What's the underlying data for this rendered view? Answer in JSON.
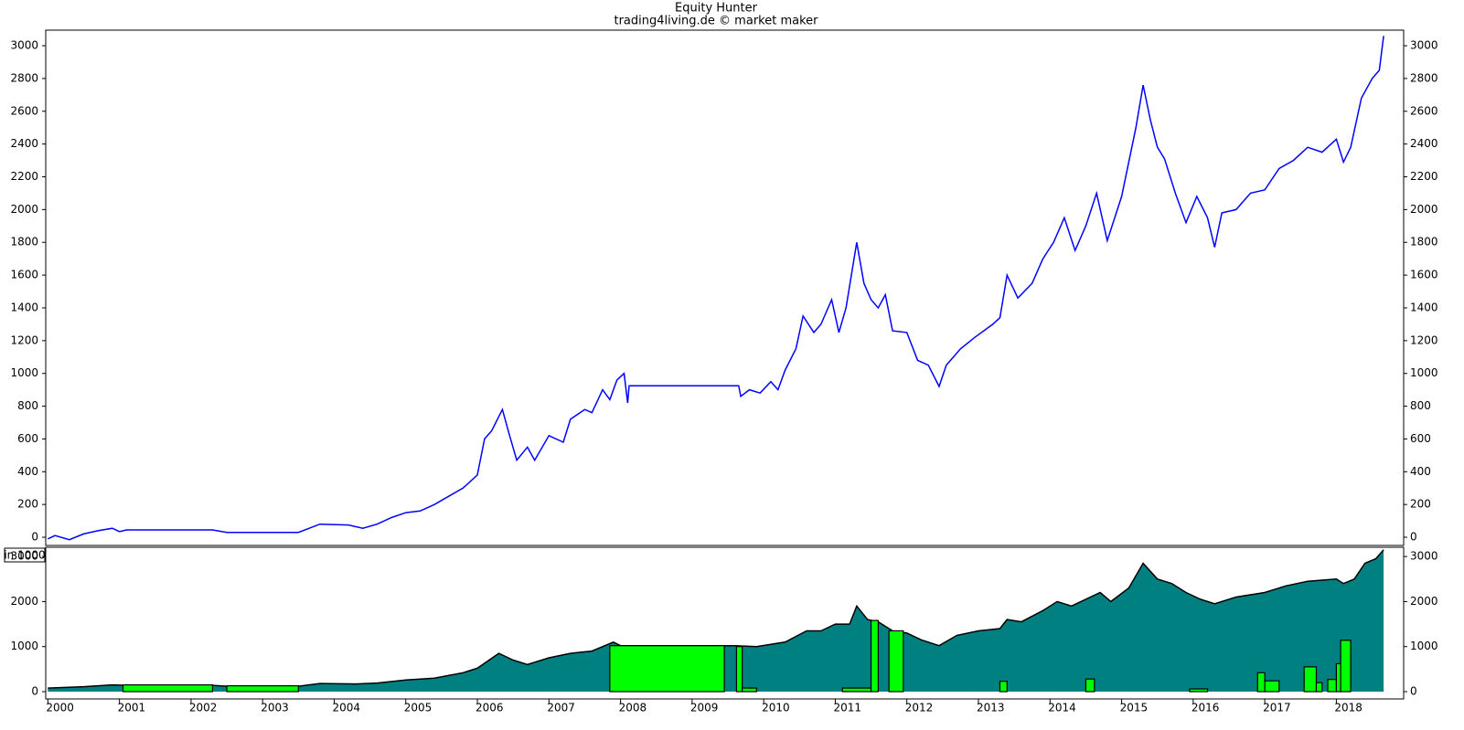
{
  "chart_data": [
    {
      "type": "line",
      "title": "Equity Hunter",
      "subtitle": "trading4living.de © market maker",
      "x": [
        2000.0,
        2000.1,
        2000.3,
        2000.5,
        2000.7,
        2000.9,
        2001.0,
        2001.1,
        2002.3,
        2002.5,
        2003.5,
        2003.8,
        2004.2,
        2004.4,
        2004.6,
        2004.8,
        2005.0,
        2005.2,
        2005.4,
        2005.6,
        2005.8,
        2006.0,
        2006.1,
        2006.2,
        2006.35,
        2006.45,
        2006.55,
        2006.7,
        2006.8,
        2007.0,
        2007.2,
        2007.3,
        2007.5,
        2007.6,
        2007.75,
        2007.85,
        2007.95,
        2008.05,
        2008.1,
        2008.12,
        2009.65,
        2009.68,
        2009.8,
        2009.95,
        2010.1,
        2010.2,
        2010.3,
        2010.45,
        2010.55,
        2010.7,
        2010.8,
        2010.95,
        2011.05,
        2011.15,
        2011.3,
        2011.4,
        2011.5,
        2011.6,
        2011.7,
        2011.8,
        2012.0,
        2012.15,
        2012.3,
        2012.45,
        2012.55,
        2012.75,
        2012.95,
        2013.2,
        2013.3,
        2013.4,
        2013.55,
        2013.75,
        2013.9,
        2014.05,
        2014.2,
        2014.35,
        2014.5,
        2014.65,
        2014.8,
        2015.0,
        2015.2,
        2015.3,
        2015.4,
        2015.5,
        2015.6,
        2015.75,
        2015.9,
        2016.05,
        2016.2,
        2016.3,
        2016.4,
        2016.6,
        2016.8,
        2017.0,
        2017.2,
        2017.4,
        2017.6,
        2017.8,
        2018.0,
        2018.1,
        2018.2,
        2018.35,
        2018.5,
        2018.6,
        2018.66
      ],
      "series": [
        {
          "color": "#0000ff",
          "values": [
            -10,
            10,
            -15,
            20,
            40,
            55,
            35,
            45,
            45,
            30,
            30,
            80,
            75,
            55,
            80,
            120,
            150,
            160,
            200,
            250,
            300,
            380,
            600,
            650,
            780,
            620,
            470,
            550,
            470,
            620,
            580,
            720,
            780,
            760,
            900,
            840,
            960,
            1000,
            820,
            925,
            925,
            860,
            900,
            880,
            950,
            900,
            1020,
            1150,
            1350,
            1250,
            1300,
            1450,
            1250,
            1400,
            1800,
            1550,
            1450,
            1400,
            1480,
            1260,
            1250,
            1080,
            1050,
            920,
            1050,
            1150,
            1220,
            1300,
            1340,
            1600,
            1460,
            1550,
            1700,
            1800,
            1950,
            1750,
            1900,
            2100,
            1810,
            2080,
            2500,
            2760,
            2550,
            2380,
            2310,
            2100,
            1920,
            2080,
            1950,
            1770,
            1980,
            2000,
            2100,
            2120,
            2250,
            2300,
            2380,
            2350,
            2430,
            2290,
            2380,
            2680,
            2800,
            2850,
            3060
          ]
        }
      ],
      "xlim": [
        1999.97,
        2018.94
      ],
      "ylim": [
        -50,
        3095
      ],
      "yticks": [
        0,
        200,
        400,
        600,
        800,
        1000,
        1200,
        1400,
        1600,
        1800,
        2000,
        2200,
        2400,
        2600,
        2800,
        3000
      ]
    },
    {
      "type": "area",
      "y_label": "in 1000",
      "x": [
        2000.0,
        2000.5,
        2000.9,
        2001.1,
        2002.3,
        2002.5,
        2003.5,
        2003.8,
        2004.3,
        2004.6,
        2005.0,
        2005.4,
        2005.8,
        2006.0,
        2006.3,
        2006.5,
        2006.7,
        2007.0,
        2007.3,
        2007.6,
        2007.9,
        2008.0,
        2009.6,
        2009.9,
        2010.3,
        2010.6,
        2010.8,
        2011.0,
        2011.2,
        2011.3,
        2011.45,
        2011.6,
        2011.8,
        2012.0,
        2012.2,
        2012.45,
        2012.7,
        2013.0,
        2013.3,
        2013.4,
        2013.6,
        2013.9,
        2014.1,
        2014.3,
        2014.7,
        2014.85,
        2015.1,
        2015.3,
        2015.5,
        2015.7,
        2015.9,
        2016.1,
        2016.3,
        2016.6,
        2017.0,
        2017.3,
        2017.6,
        2018.0,
        2018.1,
        2018.25,
        2018.4,
        2018.55,
        2018.66
      ],
      "series": [
        {
          "color": "#008080",
          "values": [
            80,
            110,
            150,
            140,
            140,
            120,
            120,
            180,
            170,
            190,
            260,
            300,
            420,
            520,
            850,
            700,
            600,
            750,
            850,
            900,
            1100,
            1020,
            1020,
            1000,
            1100,
            1350,
            1350,
            1500,
            1500,
            1900,
            1600,
            1550,
            1350,
            1300,
            1150,
            1020,
            1250,
            1350,
            1400,
            1600,
            1550,
            1800,
            2000,
            1900,
            2200,
            2000,
            2300,
            2850,
            2500,
            2400,
            2200,
            2050,
            1950,
            2100,
            2200,
            2350,
            2450,
            2500,
            2400,
            2500,
            2850,
            2950,
            3150
          ]
        }
      ],
      "bars": {
        "color": "#00ff00",
        "bins": [
          2001.05,
          2002.3,
          2002.5,
          2003.5,
          2007.85,
          2009.45,
          2009.62,
          2009.7,
          2009.9,
          2011.1,
          2011.5,
          2011.6,
          2011.75,
          2011.95,
          2013.3,
          2013.4,
          2014.5,
          2014.62,
          2015.95,
          2016.2,
          2016.9,
          2017.0,
          2017.2,
          2017.55,
          2017.72,
          2017.8,
          2017.88,
          2018.0,
          2018.06,
          2018.2
        ],
        "values": [
          150,
          0,
          130,
          0,
          1020,
          0,
          1000,
          80,
          0,
          80,
          1580,
          0,
          1350,
          0,
          230,
          0,
          280,
          0,
          60,
          0,
          420,
          240,
          0,
          550,
          200,
          0,
          270,
          620,
          1140
        ]
      },
      "xlim": [
        1999.97,
        2018.94
      ],
      "ylim": [
        -162,
        3205
      ],
      "yticks": [
        0,
        1000,
        2000,
        3000
      ],
      "xticks": [
        2000,
        2001,
        2002,
        2003,
        2004,
        2005,
        2006,
        2007,
        2008,
        2009,
        2010,
        2011,
        2012,
        2013,
        2014,
        2015,
        2016,
        2017,
        2018
      ]
    }
  ]
}
